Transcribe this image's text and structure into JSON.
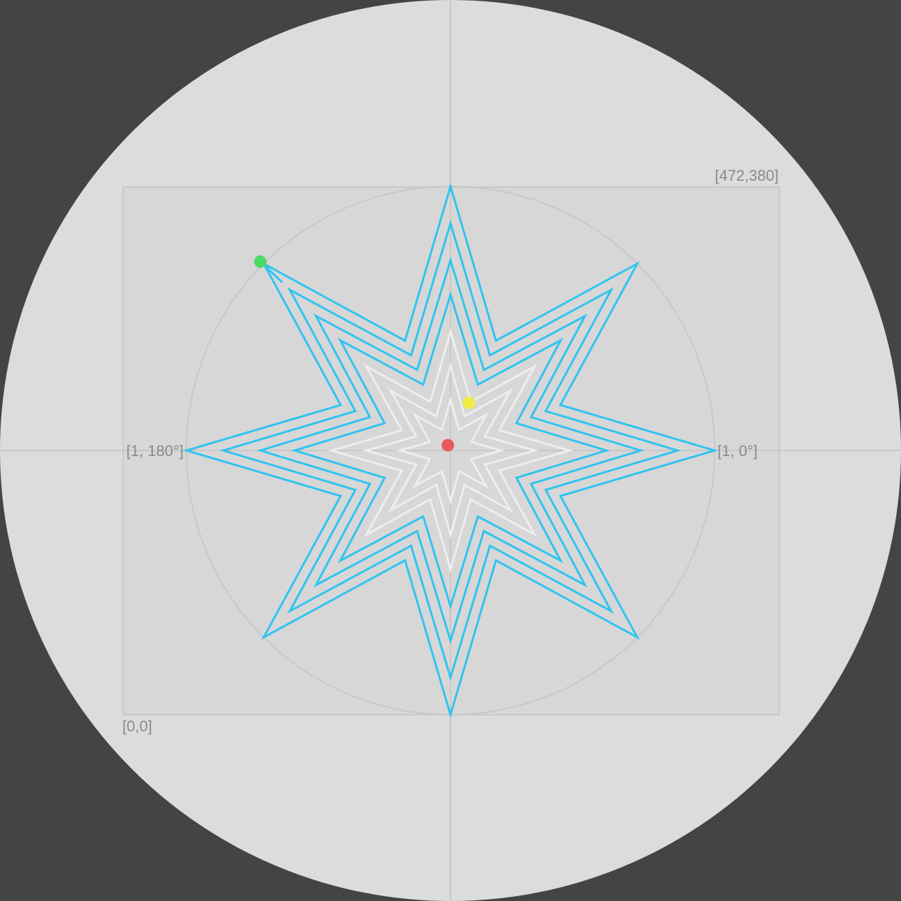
{
  "colors": {
    "page_background": "#444444",
    "disc": "#dcdcdc",
    "plot_area": "#d6d6d6",
    "frame": "#c8c8c8",
    "crosshair": "#c8c8c8",
    "unit_circle": "#c8c8c8",
    "outer_star": "#2ec4f0",
    "inner_star": "#eeeeee",
    "label": "#8a8a8a"
  },
  "labels": {
    "top_right_corner": "[472,380]",
    "bottom_left_corner": "[0,0]",
    "zero_degree": "[1, 0°]",
    "one_eighty_degree": "[1, 180°]"
  },
  "star": {
    "points": 8,
    "rotation_deg": 0,
    "inner_to_outer_ratio": 0.45,
    "outer_layers": [
      {
        "outer_radius": 1.0,
        "inner_radius": 0.45,
        "color": "outer"
      },
      {
        "outer_radius": 0.86,
        "inner_radius": 0.39,
        "color": "outer"
      },
      {
        "outer_radius": 0.72,
        "inner_radius": 0.33,
        "color": "outer"
      },
      {
        "outer_radius": 0.59,
        "inner_radius": 0.27,
        "color": "outer"
      }
    ],
    "inner_layers": [
      {
        "outer_radius": 0.45,
        "inner_radius": 0.2,
        "color": "inner"
      },
      {
        "outer_radius": 0.32,
        "inner_radius": 0.14,
        "color": "inner"
      },
      {
        "outer_radius": 0.19,
        "inner_radius": 0.085,
        "color": "inner"
      }
    ]
  },
  "markers": [
    {
      "name": "green-marker",
      "color": "#4cd964",
      "x": -0.72,
      "y": 0.715
    },
    {
      "name": "yellow-marker",
      "color": "#eeee44",
      "x": 0.07,
      "y": 0.18
    },
    {
      "name": "red-marker",
      "color": "#e85a5a",
      "x": -0.01,
      "y": 0.02
    }
  ],
  "connector": {
    "from": "green-marker",
    "to_layer_vertex": "outer-135deg"
  }
}
